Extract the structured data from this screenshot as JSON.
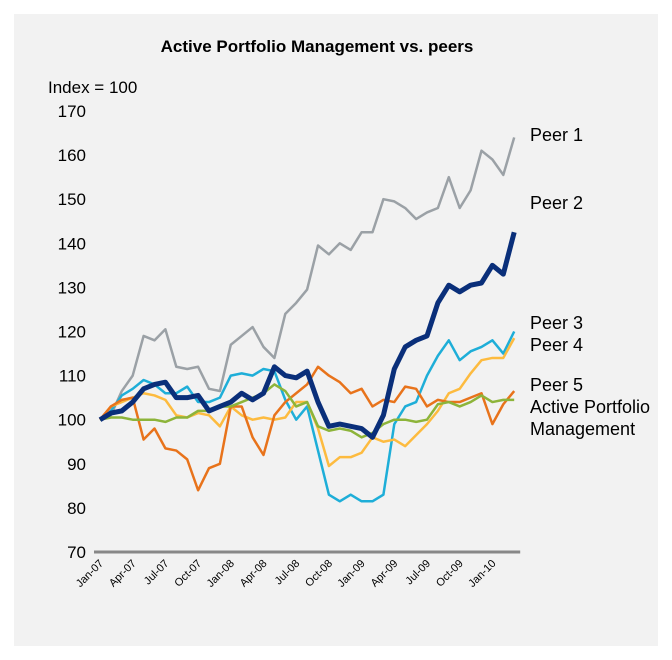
{
  "chart_data": {
    "type": "line",
    "title": "Active Portfolio Management vs. peers",
    "y_label": "Index = 100",
    "categories": [
      "Jan-07",
      null,
      null,
      "Apr-07",
      null,
      null,
      "Jul-07",
      null,
      null,
      "Oct-07",
      null,
      null,
      "Jan-08",
      null,
      null,
      "Apr-08",
      null,
      null,
      "Jul-08",
      null,
      null,
      "Oct-08",
      null,
      null,
      "Jan-09",
      null,
      null,
      "Apr-09",
      null,
      null,
      "Jul-09",
      null,
      null,
      "Oct-09",
      null,
      null,
      "Jan-10",
      null,
      null
    ],
    "ylim": [
      70,
      170
    ],
    "yticks": [
      70,
      80,
      90,
      100,
      110,
      120,
      130,
      140,
      150,
      160,
      170
    ],
    "grid": false,
    "series": [
      {
        "name": "Peer 1",
        "color": "#9ba1a6",
        "values": [
          100,
          101,
          106.5,
          110,
          119,
          118,
          120.5,
          112,
          111.5,
          112,
          107,
          106.5,
          117,
          119,
          121,
          116.5,
          114,
          124,
          126.5,
          129.5,
          139.5,
          137.5,
          140,
          138.5,
          142.5,
          142.5,
          150,
          149.5,
          148,
          145.5,
          147,
          148,
          155,
          148,
          152,
          161,
          159,
          155.5,
          164
        ]
      },
      {
        "name": "Peer 2",
        "color": "#1eaed8",
        "values": [
          100,
          102,
          105.5,
          107,
          109,
          108,
          106,
          106,
          107.5,
          104,
          104,
          105,
          110,
          110.5,
          110,
          111.5,
          111,
          104.5,
          100,
          103,
          93,
          83,
          81.5,
          83,
          81.5,
          81.5,
          83,
          99,
          103,
          104,
          110,
          114.5,
          118,
          113.5,
          115.5,
          116.5,
          118,
          115,
          120
        ]
      },
      {
        "name": "Peer 3",
        "color": "#fdbb3f",
        "values": [
          100,
          103,
          104,
          105,
          106,
          105.5,
          104.5,
          101,
          100.5,
          101.5,
          101,
          98.5,
          103,
          101,
          100,
          100.5,
          100,
          100.5,
          104,
          104,
          98,
          89.5,
          91.5,
          91.5,
          92.5,
          96,
          95,
          95.5,
          94,
          96.5,
          99,
          102,
          106,
          107,
          110.5,
          113.5,
          114,
          114,
          118.5
        ]
      },
      {
        "name": "Peer 4",
        "color": "#e8731b",
        "values": [
          100,
          103,
          104.5,
          105,
          95.5,
          98,
          93.5,
          93,
          91,
          84,
          89,
          90,
          103,
          103,
          96,
          92,
          101,
          104,
          106,
          108,
          112,
          110,
          108.5,
          106,
          107,
          103,
          104.5,
          104,
          107.5,
          107,
          103,
          104.5,
          104,
          104,
          105,
          106,
          99,
          103.5,
          106.5
        ]
      },
      {
        "name": "Peer 5",
        "color": "#8db43a",
        "values": [
          100,
          100.5,
          100.5,
          100,
          100,
          100,
          99.5,
          100.5,
          100.5,
          102,
          102,
          103,
          103,
          104,
          105,
          106,
          108,
          106.5,
          103,
          104,
          98.5,
          97.5,
          98,
          97.5,
          96,
          97,
          99,
          100,
          100,
          99.5,
          100,
          103.5,
          104,
          103,
          104,
          105.5,
          104,
          104.5,
          104.5
        ]
      },
      {
        "name": "Active Portfolio Management",
        "color": "#0a2f7a",
        "values": [
          100,
          101.5,
          102,
          104,
          107,
          108,
          108.5,
          105,
          105,
          105.5,
          102,
          103,
          104,
          106,
          104.5,
          106,
          112,
          110,
          109.5,
          111,
          104,
          98.5,
          99,
          98.5,
          98,
          96,
          101,
          111.5,
          116.5,
          118,
          119,
          126.5,
          130.5,
          129,
          130.5,
          131,
          135,
          133,
          142.5
        ]
      }
    ]
  }
}
